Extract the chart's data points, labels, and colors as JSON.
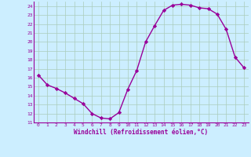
{
  "x": [
    0,
    1,
    2,
    3,
    4,
    5,
    6,
    7,
    8,
    9,
    10,
    11,
    12,
    13,
    14,
    15,
    16,
    17,
    18,
    19,
    20,
    21,
    22,
    23
  ],
  "y": [
    16.3,
    15.2,
    14.8,
    14.3,
    13.7,
    13.1,
    12.0,
    11.5,
    11.4,
    12.1,
    14.7,
    16.8,
    20.0,
    21.8,
    23.5,
    24.1,
    24.2,
    24.1,
    23.8,
    23.7,
    23.1,
    21.4,
    18.3,
    17.1
  ],
  "line_color": "#990099",
  "marker": "D",
  "marker_size": 2.2,
  "bg_color": "#cceeff",
  "grid_color": "#aaccbb",
  "xlabel": "Windchill (Refroidissement éolien,°C)",
  "xlabel_color": "#990099",
  "tick_color": "#990099",
  "ylim": [
    11,
    24.5
  ],
  "yticks": [
    11,
    12,
    13,
    14,
    15,
    16,
    17,
    18,
    19,
    20,
    21,
    22,
    23,
    24
  ],
  "xticks": [
    0,
    1,
    2,
    3,
    4,
    5,
    6,
    7,
    8,
    9,
    10,
    11,
    12,
    13,
    14,
    15,
    16,
    17,
    18,
    19,
    20,
    21,
    22,
    23
  ],
  "line_width": 1.0,
  "xlim": [
    -0.5,
    23.5
  ]
}
